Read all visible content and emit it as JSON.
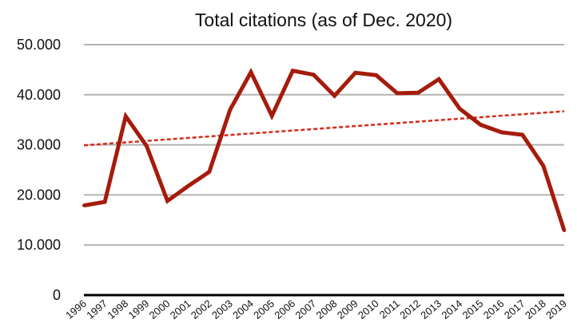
{
  "chart_data": {
    "type": "line",
    "title": "Total citations (as of Dec. 2020)",
    "xlabel": "",
    "ylabel": "",
    "categories": [
      "1996",
      "1997",
      "1998",
      "1999",
      "2000",
      "2001",
      "2002",
      "2003",
      "2004",
      "2005",
      "2006",
      "2007",
      "2008",
      "2009",
      "2010",
      "2011",
      "2012",
      "2013",
      "2014",
      "2015",
      "2016",
      "2017",
      "2018",
      "2019"
    ],
    "series": [
      {
        "values": [
          17900,
          18600,
          35700,
          29800,
          18800,
          21800,
          24600,
          37000,
          44500,
          35800,
          44800,
          44000,
          39800,
          44400,
          43900,
          40300,
          40400,
          43100,
          37200,
          34000,
          32500,
          32000,
          25800,
          12900
        ],
        "color": "#a51c0c"
      }
    ],
    "trendline": {
      "type": "linear",
      "style": "dotted",
      "color": "#d42b1a",
      "start": 29900,
      "end": 36700
    },
    "ylim": [
      0,
      50000
    ],
    "yticks": [
      0,
      10000,
      20000,
      30000,
      40000,
      50000
    ],
    "ytick_labels": [
      "0",
      "10.000",
      "20.000",
      "30.000",
      "40.000",
      "50.000"
    ],
    "grid": true,
    "legend": "none"
  }
}
